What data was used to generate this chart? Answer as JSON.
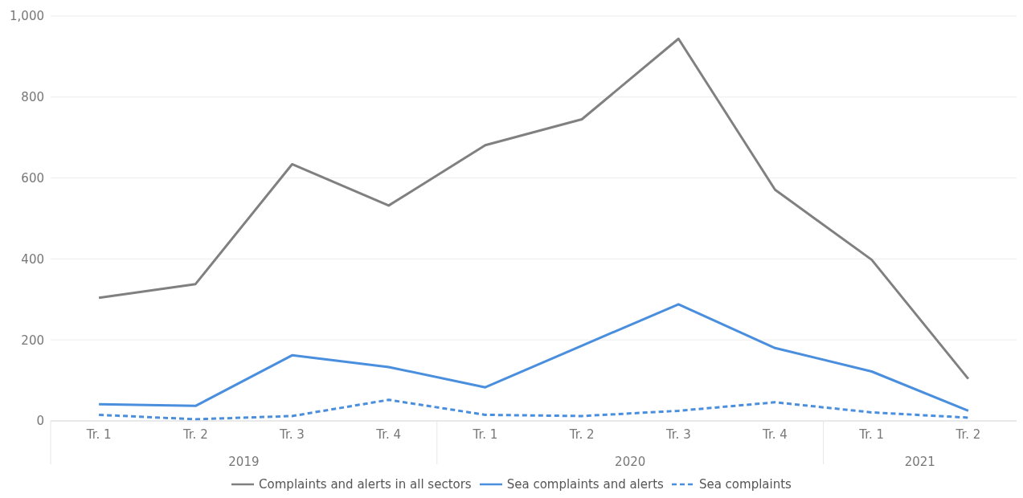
{
  "chart_data": {
    "type": "line",
    "categories": [
      "Tr. 1",
      "Tr. 2",
      "Tr. 3",
      "Tr. 4",
      "Tr. 1",
      "Tr. 2",
      "Tr. 3",
      "Tr. 4",
      "Tr. 1",
      "Tr. 2"
    ],
    "annotations": [
      "2019",
      "2020",
      "2021"
    ],
    "series": [
      {
        "name": "Complaints and alerts in all sectors",
        "color": "#808080",
        "line_style": "solid",
        "values": [
          304,
          338,
          634,
          532,
          681,
          745,
          944,
          571,
          398,
          104
        ]
      },
      {
        "name": "Sea complaints and alerts",
        "color": "#4a8ede",
        "line_style": "solid",
        "values": [
          41,
          37,
          162,
          133,
          83,
          186,
          288,
          180,
          122,
          25
        ]
      },
      {
        "name": "Sea complaints",
        "color": "#4a8ede",
        "line_style": "dashed",
        "values": [
          15,
          4,
          12,
          52,
          15,
          12,
          25,
          46,
          21,
          8
        ]
      }
    ],
    "ylim": [
      0,
      1000
    ],
    "yticks": [
      0,
      200,
      400,
      600,
      800,
      {
        "value": 1000,
        "label": "1,000"
      }
    ],
    "grid": "y",
    "legend": "bottom",
    "marker": "none"
  }
}
